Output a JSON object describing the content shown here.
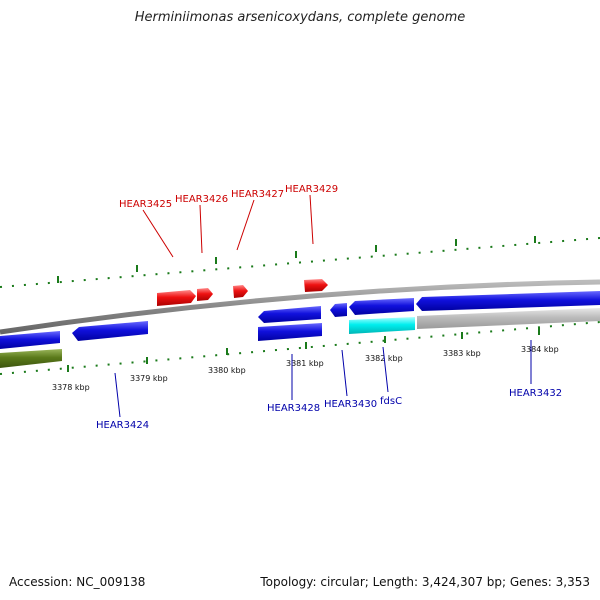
{
  "title": "Herminiimonas arsenicoxydans, complete genome",
  "footer": {
    "accession": "Accession: NC_009138",
    "info": "Topology: circular; Length: 3,424,307 bp; Genes: 3,353"
  },
  "colors": {
    "genome_line": "#888888",
    "tick": "#1a7a1a",
    "gene_red": "#ee1111",
    "gene_blue": "#1111dd",
    "gene_cyan": "#00eeee",
    "gene_gray": "#bbbbbb",
    "gene_olive": "#5a7a1a",
    "label_red": "#cc0000",
    "label_blue": "#0000aa"
  },
  "kbp_labels": [
    "3378 kbp",
    "3379 kbp",
    "3380 kbp",
    "3381 kbp",
    "3382 kbp",
    "3383 kbp",
    "3384 kbp"
  ],
  "genes_top": [
    "HEAR3425",
    "HEAR3426",
    "HEAR3427",
    "HEAR3429"
  ],
  "genes_bottom": [
    "HEAR3424",
    "HEAR3428",
    "HEAR3430",
    "fdsC",
    "HEAR3432"
  ]
}
